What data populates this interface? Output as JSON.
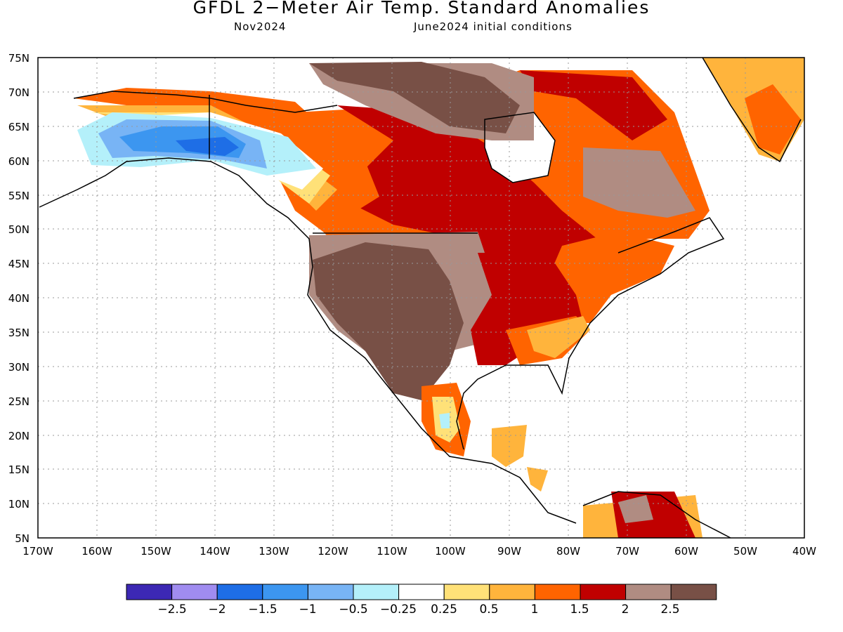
{
  "header": {
    "title": "GFDL 2−Meter Air Temp. Standard Anomalies",
    "period": "Nov2024",
    "conditions": "June2024 initial conditions"
  },
  "map": {
    "lat_labels": [
      "75N",
      "70N",
      "65N",
      "60N",
      "55N",
      "50N",
      "45N",
      "40N",
      "35N",
      "30N",
      "25N",
      "20N",
      "15N",
      "10N",
      "5N"
    ],
    "lon_labels": [
      "170W",
      "160W",
      "150W",
      "140W",
      "130W",
      "120W",
      "110W",
      "100W",
      "90W",
      "80W",
      "70W",
      "60W",
      "50W",
      "40W"
    ],
    "extent": {
      "lon_min": -170,
      "lon_max": -40,
      "lat_min": 5,
      "lat_max": 75
    },
    "grid": "dotted"
  },
  "colorbar": {
    "labels": [
      "−2.5",
      "−2",
      "−1.5",
      "−1",
      "−0.5",
      "−0.25",
      "0.25",
      "0.5",
      "1",
      "1.5",
      "2",
      "2.5"
    ],
    "colors": [
      "#3c28b4",
      "#a08cf0",
      "#1e6ee6",
      "#3c96f0",
      "#78b4f5",
      "#b4f0fa",
      "#ffffff",
      "#ffe178",
      "#ffb43c",
      "#ff6400",
      "#c00000",
      "#b08c82",
      "#785046"
    ]
  },
  "anomaly_colors": {
    "strong_positive_brown": "#785046",
    "positive_taupe": "#b08c82",
    "dark_red": "#c00000",
    "orange_red": "#ff6400",
    "orange": "#ffb43c",
    "yellow": "#ffe178",
    "light_cyan": "#b4f0fa",
    "light_blue": "#78b4f5",
    "blue": "#3c96f0",
    "deep_blue": "#1e6ee6"
  }
}
